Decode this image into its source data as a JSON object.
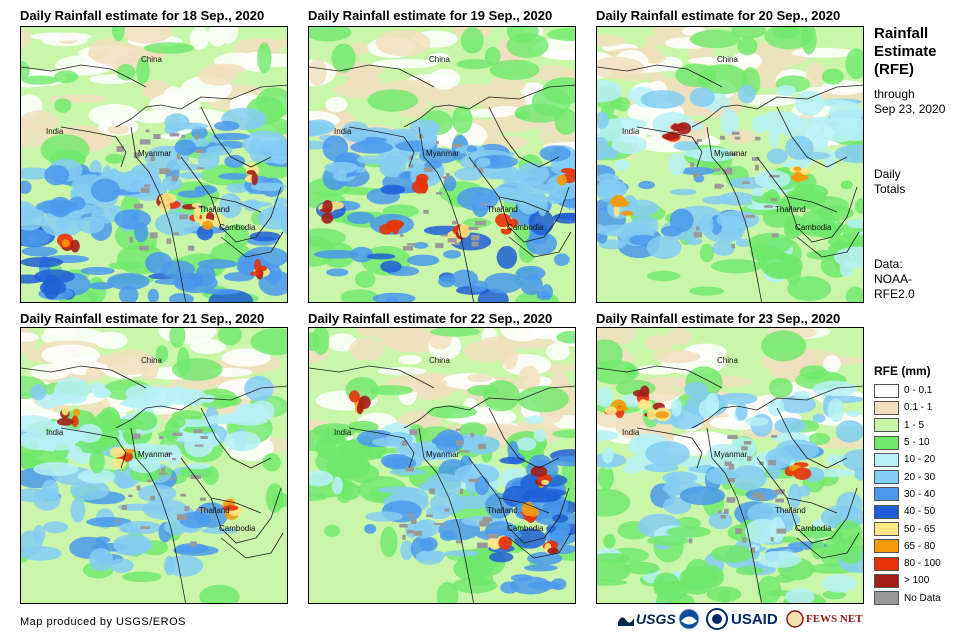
{
  "panels": [
    {
      "title": "Daily Rainfall estimate for 18 Sep., 2020"
    },
    {
      "title": "Daily Rainfall estimate for 19 Sep., 2020"
    },
    {
      "title": "Daily Rainfall estimate for 20 Sep., 2020"
    },
    {
      "title": "Daily Rainfall estimate for 21 Sep., 2020"
    },
    {
      "title": "Daily Rainfall estimate for 22 Sep., 2020"
    },
    {
      "title": "Daily Rainfall estimate for 23 Sep., 2020"
    }
  ],
  "countries": {
    "china": "China",
    "india": "India",
    "myanmar": "Myanmar",
    "thailand": "Thailand",
    "cambodia": "Cambodia"
  },
  "sidebar": {
    "title_line1": "Rainfall",
    "title_line2": "Estimate",
    "title_line3": "(RFE)",
    "through_label": "through",
    "through_date": "Sep 23, 2020",
    "daily_label": "Daily",
    "totals_label": "Totals",
    "data_label": "Data:",
    "data_source1": "NOAA-",
    "data_source2": "RFE2.0"
  },
  "legend": {
    "title": "RFE (mm)",
    "items": [
      {
        "label": "0 - 0.1",
        "color": "#ffffff"
      },
      {
        "label": "0.1 - 1",
        "color": "#f1dfbf"
      },
      {
        "label": "1 - 5",
        "color": "#c9f6a9"
      },
      {
        "label": "5 - 10",
        "color": "#6ee86a"
      },
      {
        "label": "10 - 20",
        "color": "#b6f1f6"
      },
      {
        "label": "20 - 30",
        "color": "#84cdf2"
      },
      {
        "label": "30 - 40",
        "color": "#4a99ec"
      },
      {
        "label": "40 - 50",
        "color": "#1e5fd6"
      },
      {
        "label": "50 - 65",
        "color": "#fbe785"
      },
      {
        "label": "65 - 80",
        "color": "#f59a09"
      },
      {
        "label": "80 - 100",
        "color": "#e83208"
      },
      {
        "label": "> 100",
        "color": "#a41d16"
      },
      {
        "label": "No Data",
        "color": "#999999"
      }
    ]
  },
  "footer": {
    "credit": "Map produced by USGS/EROS",
    "logo_usgs": "USGS",
    "logo_usaid": "USAID",
    "logo_fewsnet": "FEWS NET"
  }
}
